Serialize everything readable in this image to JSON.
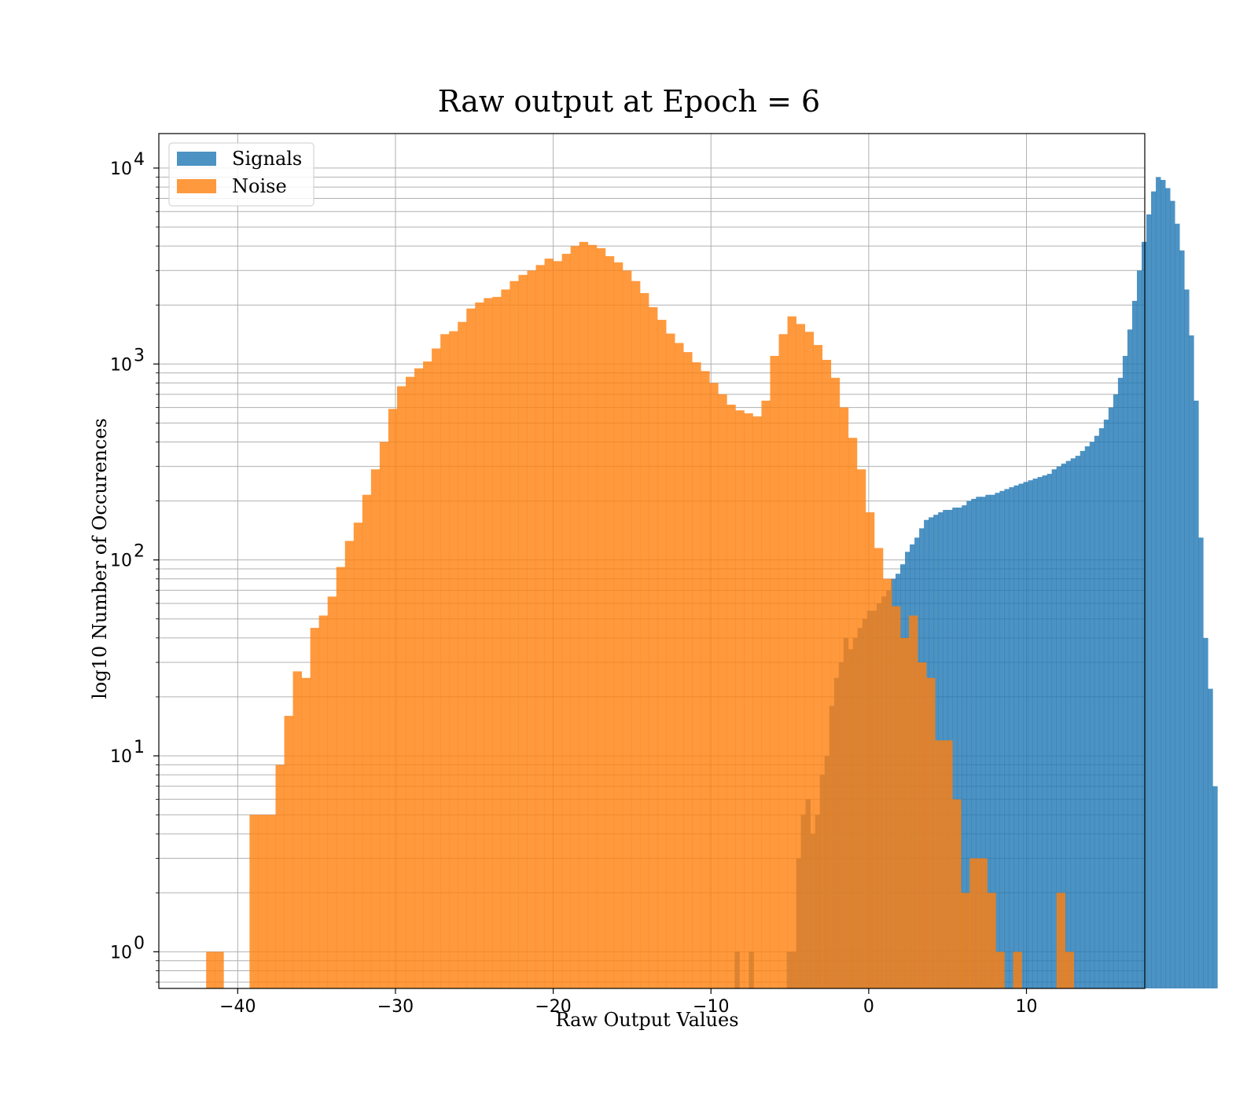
{
  "chart_data": {
    "type": "bar",
    "title": "Raw output at Epoch = 6",
    "xlabel": "Raw Output Values",
    "ylabel": "log10 Number of Occurences",
    "xlim": [
      -45,
      17.5
    ],
    "ylim": [
      0.65,
      15000
    ],
    "yscale": "log",
    "grid": true,
    "legend": "top-left",
    "x_ticks": [
      -40,
      -30,
      -20,
      -10,
      0,
      10
    ],
    "x_tick_labels": [
      "−40",
      "−30",
      "−20",
      "−10",
      "0",
      "10"
    ],
    "y_ticks": [
      {
        "value": 1,
        "base": "10",
        "exp": "0"
      },
      {
        "value": 10,
        "base": "10",
        "exp": "1"
      },
      {
        "value": 100,
        "base": "10",
        "exp": "2"
      },
      {
        "value": 1000,
        "base": "10",
        "exp": "3"
      },
      {
        "value": 10000,
        "base": "10",
        "exp": "4"
      }
    ],
    "series": [
      {
        "name": "Signals",
        "color": "#1f77b4",
        "opacity": 0.8,
        "x_start": -8.5,
        "bin_width": 0.3,
        "counts": [
          1,
          0,
          0,
          1,
          0,
          0,
          0,
          0,
          0,
          0,
          0,
          1,
          1,
          3,
          5,
          6,
          4,
          5,
          8,
          10,
          18,
          25,
          30,
          40,
          35,
          40,
          45,
          50,
          55,
          55,
          60,
          65,
          70,
          80,
          85,
          95,
          110,
          120,
          130,
          145,
          160,
          165,
          170,
          175,
          180,
          180,
          185,
          185,
          190,
          200,
          205,
          210,
          210,
          215,
          215,
          220,
          225,
          230,
          235,
          240,
          245,
          250,
          255,
          260,
          265,
          270,
          275,
          290,
          300,
          310,
          320,
          330,
          340,
          360,
          380,
          400,
          430,
          470,
          520,
          600,
          700,
          850,
          1100,
          1500,
          2100,
          3000,
          4200,
          5800,
          7600,
          9000,
          8700,
          7900,
          6800,
          5200,
          3800,
          2400,
          1400,
          650,
          130,
          40,
          22,
          7
        ],
        "alpha": 0.8
      },
      {
        "name": "Noise",
        "color": "#ff7f0e",
        "opacity": 0.8,
        "x_start": -42,
        "bin_width": 0.55,
        "counts": [
          1,
          1,
          0,
          0,
          0,
          5,
          5,
          5,
          9,
          16,
          27,
          25,
          45,
          52,
          65,
          92,
          125,
          155,
          215,
          290,
          400,
          590,
          770,
          860,
          950,
          1030,
          1200,
          1420,
          1470,
          1640,
          1920,
          2060,
          2170,
          2200,
          2400,
          2650,
          2850,
          3000,
          3200,
          3450,
          3350,
          3650,
          4000,
          4200,
          4050,
          3900,
          3550,
          3300,
          3000,
          2650,
          2300,
          1950,
          1680,
          1430,
          1280,
          1150,
          1020,
          920,
          800,
          700,
          620,
          580,
          560,
          540,
          650,
          1100,
          1420,
          1750,
          1600,
          1460,
          1250,
          1050,
          850,
          600,
          420,
          290,
          175,
          115,
          80,
          58,
          40,
          52,
          30,
          25,
          12,
          12,
          6,
          2,
          3,
          3,
          2,
          1,
          0,
          1,
          0,
          0,
          0,
          0,
          2,
          1
        ]
      }
    ]
  }
}
